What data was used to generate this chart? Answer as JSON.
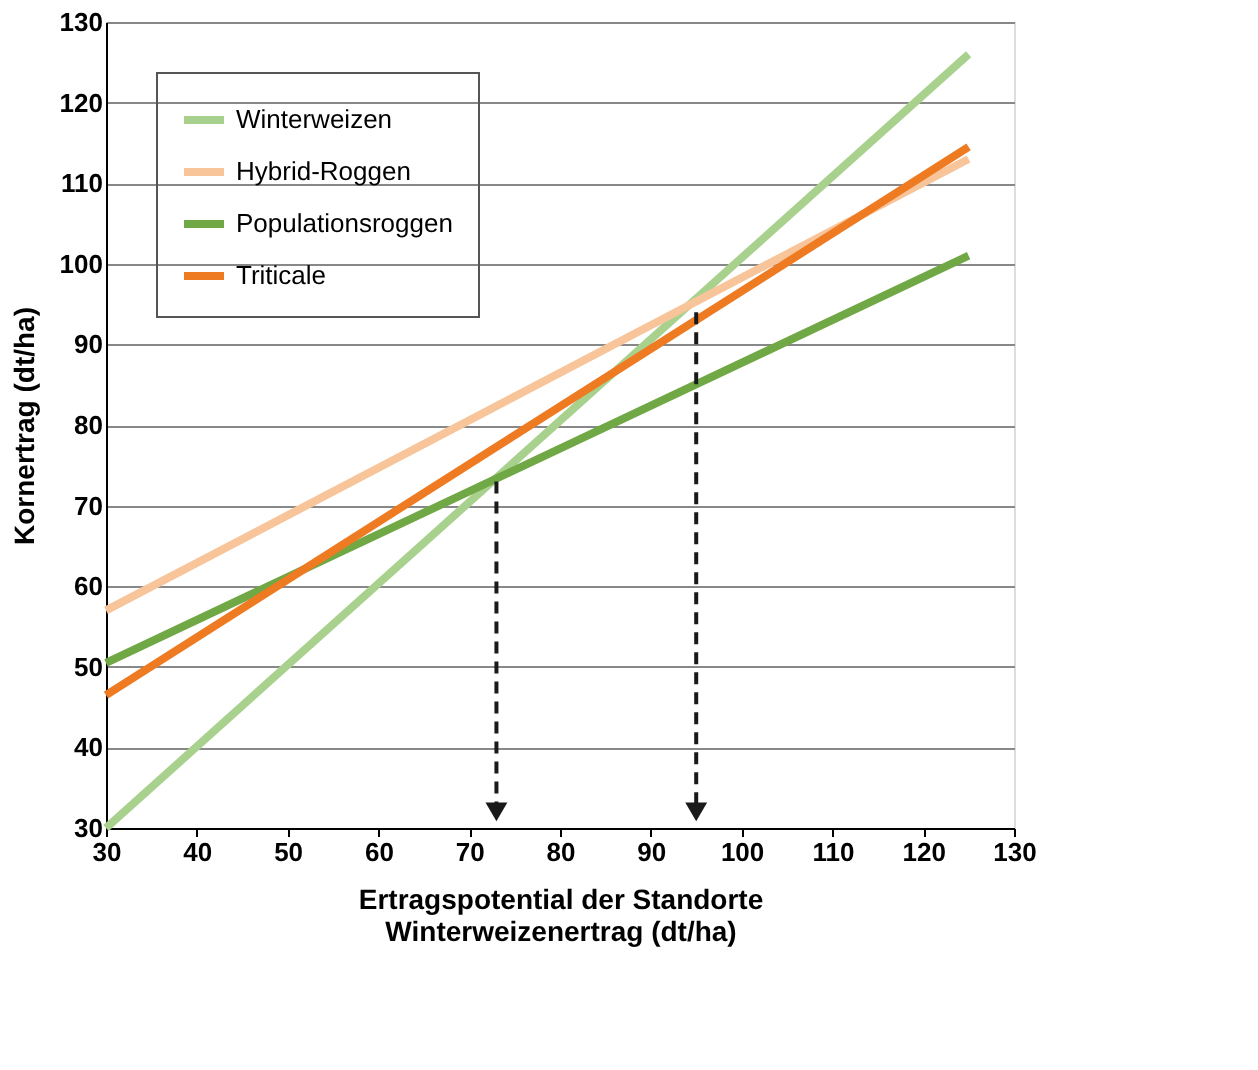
{
  "chart_data": {
    "type": "line",
    "xlabel": "Ertragspotential der Standorte\nWinterweizenertrag (dt/ha)",
    "ylabel": "Kornertrag (dt/ha)",
    "xlim": [
      30,
      130
    ],
    "xticks": [
      30,
      40,
      50,
      60,
      70,
      80,
      90,
      100,
      110,
      120,
      130
    ],
    "ylim": [
      30,
      130
    ],
    "yticks": [
      30,
      40,
      50,
      60,
      70,
      80,
      90,
      100,
      110,
      120,
      130
    ],
    "grid": "y",
    "legend": "top left",
    "marker": "none",
    "line_style": "solid",
    "series": [
      {
        "name": "Winterweizen",
        "color": "#a9d18e",
        "x": [
          30,
          125
        ],
        "values": [
          30,
          126
        ]
      },
      {
        "name": "Hybrid-Roggen",
        "color": "#f8c49a",
        "x": [
          30,
          125
        ],
        "values": [
          57,
          113
        ]
      },
      {
        "name": "Populationsroggen",
        "color": "#70a845",
        "x": [
          30,
          125
        ],
        "values": [
          50.5,
          101
        ]
      },
      {
        "name": "Triticale",
        "color": "#ee7a22",
        "x": [
          30,
          125
        ],
        "values": [
          46.5,
          114.5
        ]
      },
      {
        "color": "#1a1a1a",
        "line_style": "dashed",
        "marker": "triangle",
        "x": [
          73,
          73
        ],
        "values": [
          73,
          32
        ]
      },
      {
        "color": "#1a1a1a",
        "line_style": "dashed",
        "marker": "triangle",
        "x": [
          95,
          95
        ],
        "values": [
          94,
          32
        ]
      }
    ]
  }
}
